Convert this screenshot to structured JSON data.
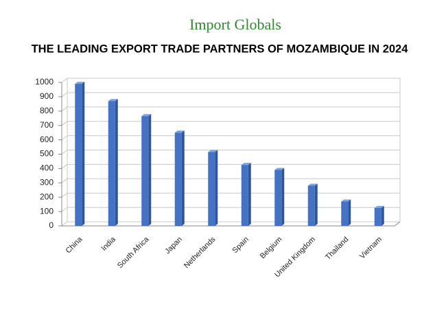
{
  "brand": "Import Globals",
  "chart_data": {
    "type": "bar",
    "title": "THE LEADING EXPORT TRADE PARTNERS OF MOZAMBIQUE IN 2024",
    "categories": [
      "China",
      "India",
      "South Africa",
      "Japan",
      "Netherlands",
      "Spain",
      "Belgium",
      "United Kingdom",
      "Thailand",
      "Vietnam"
    ],
    "values": [
      990,
      870,
      765,
      650,
      515,
      425,
      390,
      280,
      170,
      125
    ],
    "color": "#4472c4",
    "ylim": [
      0,
      1000
    ],
    "yticks": [
      0,
      100,
      200,
      300,
      400,
      500,
      600,
      700,
      800,
      900,
      1000
    ],
    "grid": true
  }
}
